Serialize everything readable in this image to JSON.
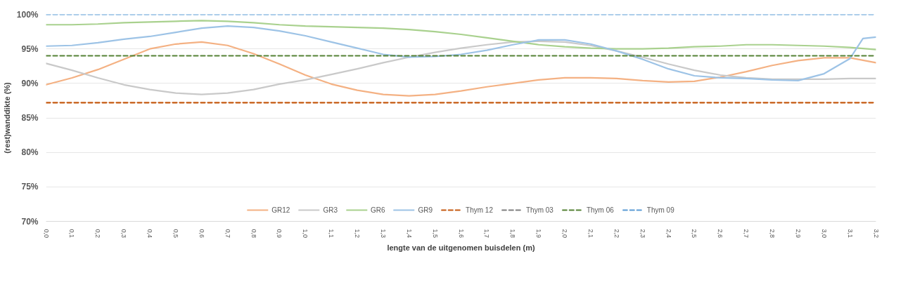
{
  "chart_data": {
    "type": "line",
    "xlabel": "lengte van de uitgenomen buisdelen (m)",
    "ylabel": "(rest)wanddikte (%)",
    "x": [
      0.0,
      0.1,
      0.2,
      0.3,
      0.4,
      0.5,
      0.6,
      0.7,
      0.8,
      0.9,
      1.0,
      1.1,
      1.2,
      1.3,
      1.4,
      1.5,
      1.6,
      1.7,
      1.8,
      1.9,
      2.0,
      2.1,
      2.2,
      2.3,
      2.4,
      2.5,
      2.6,
      2.7,
      2.8,
      2.9,
      3.0,
      3.1,
      3.2
    ],
    "series": [
      {
        "name": "GR12",
        "color": "#f4b183",
        "values": [
          89.8,
          90.8,
          92.0,
          93.5,
          95.0,
          95.7,
          96.0,
          95.5,
          94.3,
          92.8,
          91.2,
          89.9,
          89.0,
          88.4,
          88.2,
          88.4,
          88.9,
          89.5,
          90.0,
          90.5,
          90.8,
          90.8,
          90.7,
          90.4,
          90.2,
          90.3,
          90.9,
          91.7,
          92.6,
          93.3,
          93.7,
          93.7,
          93.0
        ]
      },
      {
        "name": "GR3",
        "color": "#c9c9c9",
        "values": [
          92.9,
          91.9,
          90.8,
          89.8,
          89.1,
          88.6,
          88.4,
          88.6,
          89.1,
          89.9,
          90.5,
          91.3,
          92.1,
          93.0,
          93.8,
          94.5,
          95.1,
          95.6,
          96.0,
          96.1,
          96.0,
          95.5,
          94.7,
          93.8,
          92.8,
          91.9,
          91.2,
          90.8,
          90.6,
          90.6,
          90.6,
          90.7,
          90.7
        ]
      },
      {
        "name": "GR6",
        "color": "#a9d18e",
        "values": [
          98.5,
          98.5,
          98.6,
          98.8,
          98.9,
          99.0,
          99.1,
          99.0,
          98.8,
          98.5,
          98.3,
          98.2,
          98.1,
          98.0,
          97.8,
          97.5,
          97.1,
          96.6,
          96.1,
          95.6,
          95.3,
          95.1,
          95.0,
          95.0,
          95.1,
          95.3,
          95.4,
          95.6,
          95.6,
          95.5,
          95.4,
          95.2,
          94.9
        ]
      },
      {
        "name": "GR9",
        "color": "#9dc3e6",
        "x": [
          0.0,
          0.1,
          0.2,
          0.3,
          0.4,
          0.5,
          0.6,
          0.7,
          0.8,
          0.9,
          1.0,
          1.1,
          1.2,
          1.3,
          1.4,
          1.5,
          1.6,
          1.7,
          1.8,
          1.9,
          2.0,
          2.1,
          2.2,
          2.3,
          2.4,
          2.5,
          2.6,
          2.7,
          2.8,
          2.9,
          3.0,
          3.1,
          3.15,
          3.2
        ],
        "values": [
          95.4,
          95.5,
          95.9,
          96.4,
          96.8,
          97.4,
          98.0,
          98.3,
          98.1,
          97.6,
          96.9,
          96.0,
          95.1,
          94.2,
          93.8,
          93.9,
          94.2,
          94.8,
          95.6,
          96.3,
          96.3,
          95.7,
          94.7,
          93.5,
          92.1,
          91.1,
          90.8,
          90.7,
          90.5,
          90.4,
          91.4,
          93.6,
          96.5,
          96.7
        ]
      },
      {
        "name": "Thym 12",
        "color": "#c55a11",
        "line_style": "dashed",
        "x": [
          0.0,
          3.2
        ],
        "values": [
          87.2,
          87.2
        ]
      },
      {
        "name": "Thym 03",
        "color": "#7f7f7f",
        "line_style": "dashed",
        "values": [
          null,
          null,
          null,
          null,
          null,
          null,
          null,
          null,
          null,
          null,
          null,
          null,
          null,
          null,
          null,
          null,
          null,
          null,
          null,
          null,
          null,
          null,
          null,
          null,
          null,
          null,
          null,
          null,
          null,
          null,
          null,
          null,
          null
        ]
      },
      {
        "name": "Thym 06",
        "color": "#548235",
        "line_style": "dashed",
        "x": [
          0.0,
          3.2
        ],
        "values": [
          94.0,
          94.0
        ]
      },
      {
        "name": "Thym 09",
        "color": "#5b9bd5",
        "line_style": "dashed",
        "x": [
          0.0,
          3.2
        ],
        "values": [
          100.0,
          100.0
        ]
      }
    ],
    "xlim": [
      0.0,
      3.2
    ],
    "xticks": [
      {
        "value": 0.0,
        "label": "0,0"
      },
      {
        "value": 0.1,
        "label": "0,1"
      },
      {
        "value": 0.2,
        "label": "0,2"
      },
      {
        "value": 0.3,
        "label": "0,3"
      },
      {
        "value": 0.4,
        "label": "0,4"
      },
      {
        "value": 0.5,
        "label": "0,5"
      },
      {
        "value": 0.6,
        "label": "0,6"
      },
      {
        "value": 0.7,
        "label": "0,7"
      },
      {
        "value": 0.8,
        "label": "0,8"
      },
      {
        "value": 0.9,
        "label": "0,9"
      },
      {
        "value": 1.0,
        "label": "1,0"
      },
      {
        "value": 1.1,
        "label": "1,1"
      },
      {
        "value": 1.2,
        "label": "1,2"
      },
      {
        "value": 1.3,
        "label": "1,3"
      },
      {
        "value": 1.4,
        "label": "1,4"
      },
      {
        "value": 1.5,
        "label": "1,5"
      },
      {
        "value": 1.6,
        "label": "1,6"
      },
      {
        "value": 1.7,
        "label": "1,7"
      },
      {
        "value": 1.8,
        "label": "1,8"
      },
      {
        "value": 1.9,
        "label": "1,9"
      },
      {
        "value": 2.0,
        "label": "2,0"
      },
      {
        "value": 2.1,
        "label": "2,1"
      },
      {
        "value": 2.2,
        "label": "2,2"
      },
      {
        "value": 2.3,
        "label": "2,3"
      },
      {
        "value": 2.4,
        "label": "2,4"
      },
      {
        "value": 2.5,
        "label": "2,5"
      },
      {
        "value": 2.6,
        "label": "2,6"
      },
      {
        "value": 2.7,
        "label": "2,7"
      },
      {
        "value": 2.8,
        "label": "2,8"
      },
      {
        "value": 2.9,
        "label": "2,9"
      },
      {
        "value": 3.0,
        "label": "3,0"
      },
      {
        "value": 3.1,
        "label": "3,1"
      },
      {
        "value": 3.2,
        "label": "3,2"
      }
    ],
    "ylim": [
      70,
      100
    ],
    "yticks": [
      {
        "value": 70,
        "label": "70%"
      },
      {
        "value": 75,
        "label": "75%"
      },
      {
        "value": 80,
        "label": "80%"
      },
      {
        "value": 85,
        "label": "85%"
      },
      {
        "value": 90,
        "label": "90%"
      },
      {
        "value": 95,
        "label": "95%"
      },
      {
        "value": 100,
        "label": "100%"
      }
    ],
    "grid": "y",
    "legend": "bottom",
    "line_style": "solid",
    "marker": "none"
  }
}
